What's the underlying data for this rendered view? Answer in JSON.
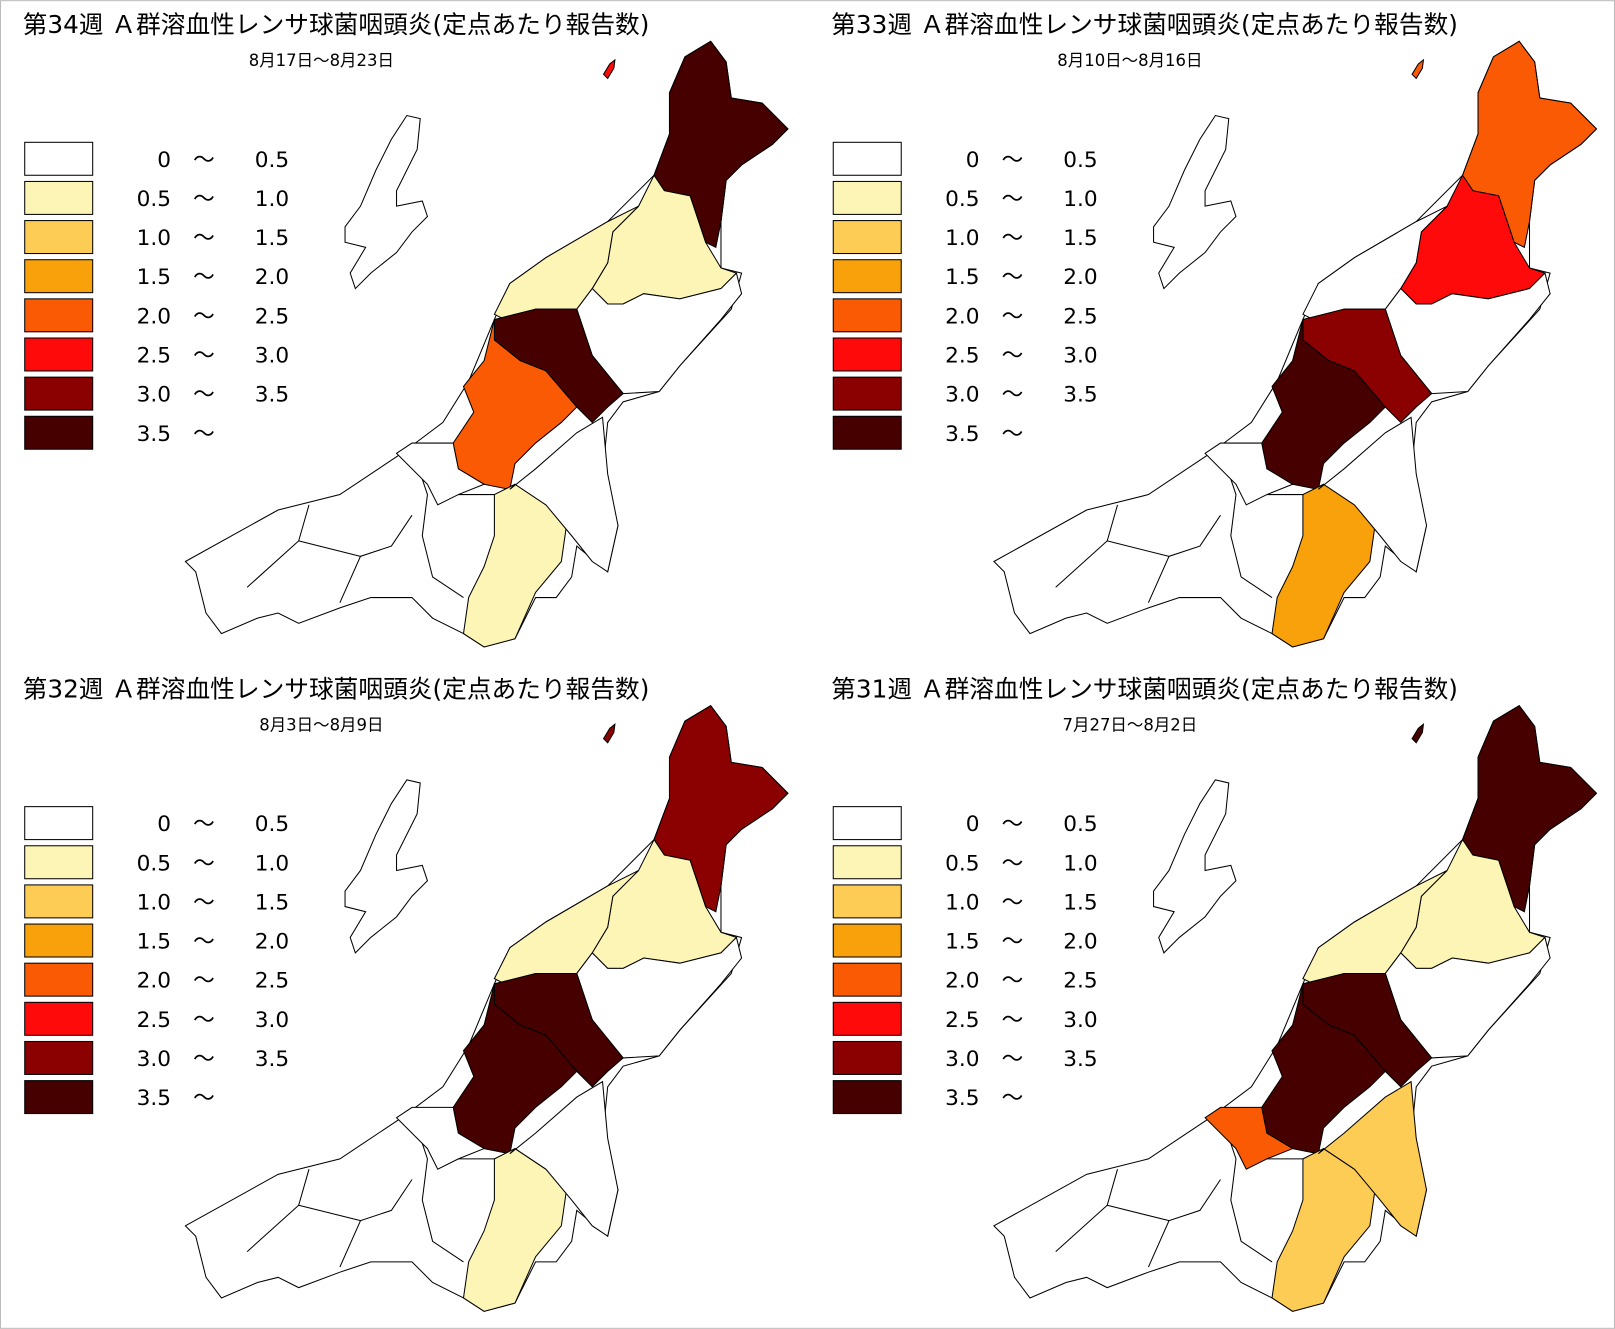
{
  "panels": [
    {
      "title": "第34週 Ａ群溶血性レンサ球菌咽頭炎(定点あたり報告数)",
      "date": "8月17日〜8月23日",
      "fills": [
        "#ff0a0a",
        "#460000",
        "#fdf5b5",
        "#fdf5b5",
        "#ffffff",
        "#460000",
        "#fb5a04",
        "#fdf5b5",
        "#ffffff",
        "#ffffff"
      ]
    },
    {
      "title": "第33週 Ａ群溶血性レンサ球菌咽頭炎(定点あたり報告数)",
      "date": "8月10日〜8月16日",
      "fills": [
        "#fb5a04",
        "#fb5a04",
        "#ff0a0a",
        "#ffffff",
        "#ffffff",
        "#8b0000",
        "#460000",
        "#f8a10a",
        "#ffffff",
        "#ffffff"
      ]
    },
    {
      "title": "第32週 Ａ群溶血性レンサ球菌咽頭炎(定点あたり報告数)",
      "date": "8月3日〜8月9日",
      "fills": [
        "#8b0000",
        "#8b0000",
        "#fdf5b5",
        "#fdf5b5",
        "#ffffff",
        "#460000",
        "#460000",
        "#fdf5b5",
        "#ffffff",
        "#ffffff"
      ]
    },
    {
      "title": "第31週 Ａ群溶血性レンサ球菌咽頭炎(定点あたり報告数)",
      "date": "7月27日〜8月2日",
      "fills": [
        "#460000",
        "#460000",
        "#fdf5b5",
        "#fdf5b5",
        "#ffffff",
        "#460000",
        "#460000",
        "#fdcc55",
        "#fdcc55",
        "#fb5a04"
      ]
    }
  ],
  "legend": {
    "separator": "〜",
    "items": [
      {
        "color": "#ffffff",
        "from": "0",
        "to": "0.5"
      },
      {
        "color": "#fdf5b5",
        "from": "0.5",
        "to": "1.0"
      },
      {
        "color": "#fdcc55",
        "from": "1.0",
        "to": "1.5"
      },
      {
        "color": "#f8a10a",
        "from": "1.5",
        "to": "2.0"
      },
      {
        "color": "#fb5a04",
        "from": "2.0",
        "to": "2.5"
      },
      {
        "color": "#ff0a0a",
        "from": "2.5",
        "to": "3.0"
      },
      {
        "color": "#8b0000",
        "from": "3.0",
        "to": "3.5"
      },
      {
        "color": "#460000",
        "from": "3.5"
      }
    ]
  }
}
